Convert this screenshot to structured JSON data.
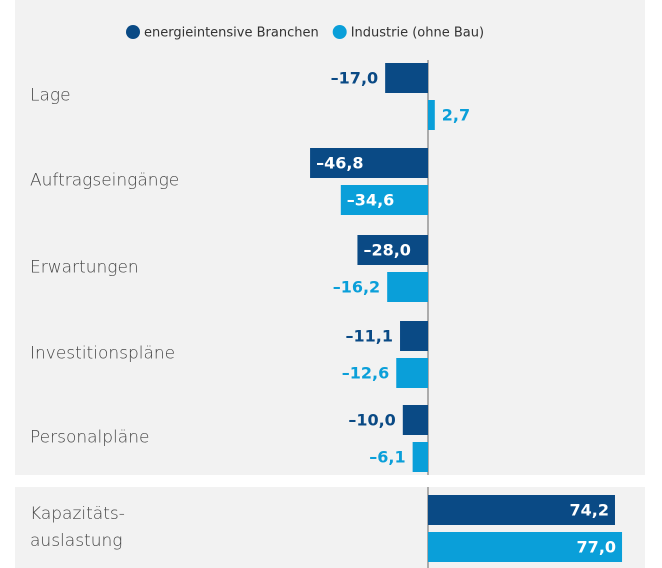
{
  "chart_data": {
    "type": "bar",
    "orientation": "horizontal",
    "categories": [
      "Lage",
      "Auftragseingänge",
      "Erwartungen",
      "Investitionspläne",
      "Personalpläne",
      "Kapazitäts-\nauslastung"
    ],
    "series": [
      {
        "name": "energieintensive Branchen",
        "color": "#0a4a85",
        "values": [
          -17.0,
          -46.8,
          -28.0,
          -11.1,
          -10.0,
          74.2
        ],
        "value_labels": [
          "–17,0",
          "–46,8",
          "–28,0",
          "–11,1",
          "–10,0",
          "74,2"
        ]
      },
      {
        "name": "Industrie (ohne Bau)",
        "color": "#0a9fd9",
        "values": [
          2.7,
          -34.6,
          -16.2,
          -12.6,
          -6.1,
          77.0
        ],
        "value_labels": [
          "2,7",
          "–34,6",
          "–16,2",
          "–12,6",
          "–6,1",
          "77,0"
        ]
      }
    ],
    "legend": "top"
  }
}
